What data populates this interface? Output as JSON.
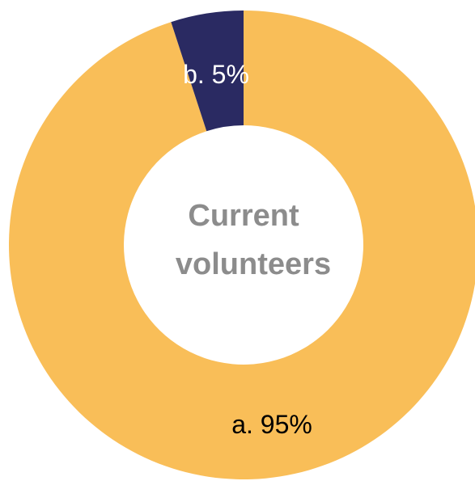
{
  "chart_data": {
    "type": "pie",
    "variant": "donut",
    "center_text": [
      "Current",
      "volunteers"
    ],
    "slices": [
      {
        "category": "a.",
        "value": 95,
        "label": "a. 95%",
        "color": "#F9BE58",
        "label_color": "#000000"
      },
      {
        "category": "b.",
        "value": 5,
        "label": "b. 5%",
        "color": "#2A2A62",
        "label_color": "#ffffff"
      }
    ],
    "start_angle": "12 o'clock",
    "direction": "clockwise",
    "legend": "none"
  }
}
